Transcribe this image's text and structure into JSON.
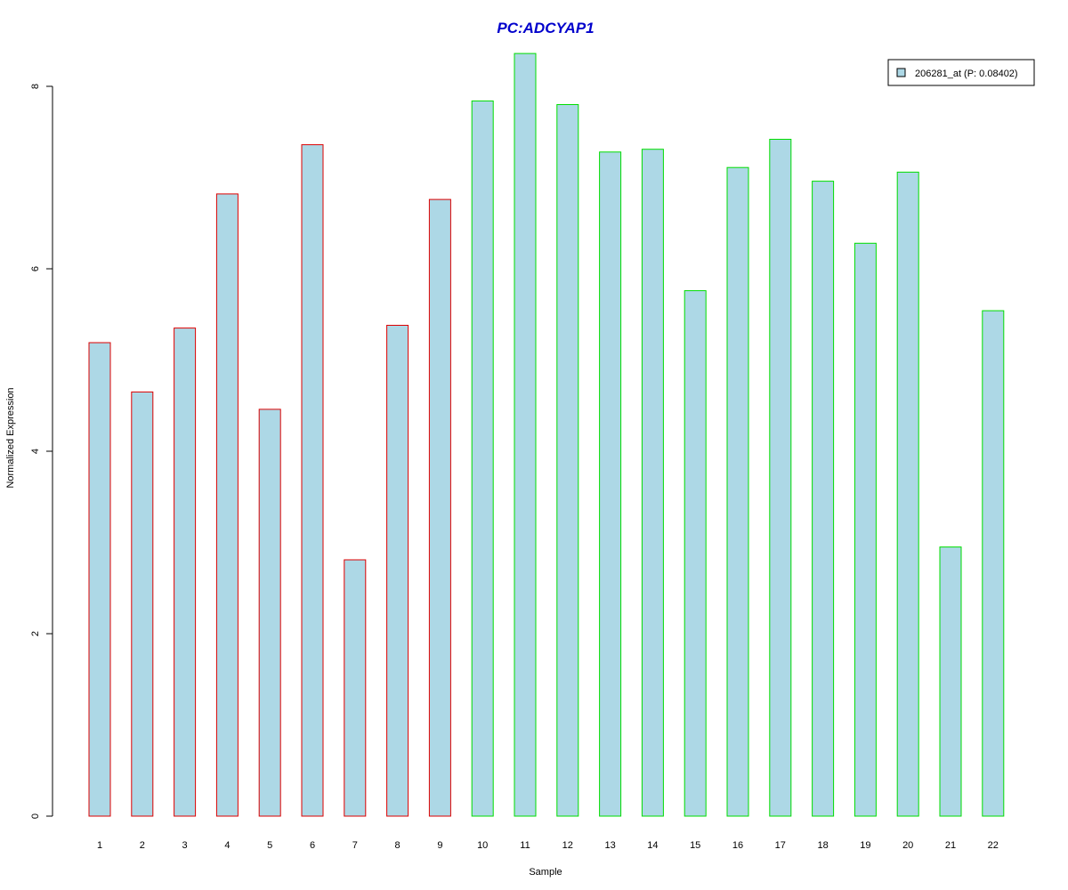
{
  "chart_data": {
    "type": "bar",
    "title": "PC:ADCYAP1",
    "xlabel": "Sample",
    "ylabel": "Normalized Expression",
    "categories": [
      "1",
      "2",
      "3",
      "4",
      "5",
      "6",
      "7",
      "8",
      "9",
      "10",
      "11",
      "12",
      "13",
      "14",
      "15",
      "16",
      "17",
      "18",
      "19",
      "20",
      "21",
      "22"
    ],
    "series": [
      {
        "name": "206281_at (P: 0.08402)",
        "values": [
          5.19,
          4.65,
          5.35,
          6.82,
          4.46,
          7.36,
          2.81,
          5.38,
          6.76,
          7.84,
          8.36,
          7.8,
          7.28,
          7.31,
          5.76,
          7.11,
          7.42,
          6.96,
          6.28,
          7.06,
          2.95,
          5.54
        ]
      }
    ],
    "bar_border_colors": [
      "#dd0000",
      "#dd0000",
      "#dd0000",
      "#dd0000",
      "#dd0000",
      "#dd0000",
      "#dd0000",
      "#dd0000",
      "#dd0000",
      "#00dd00",
      "#00dd00",
      "#00dd00",
      "#00dd00",
      "#00dd00",
      "#00dd00",
      "#00dd00",
      "#00dd00",
      "#00dd00",
      "#00dd00",
      "#00dd00",
      "#00dd00",
      "#00dd00"
    ],
    "bar_fill": "#add8e6",
    "title_color": "#0000cc",
    "yticks": [
      0,
      2,
      4,
      6,
      8
    ],
    "ylim": [
      0,
      8.36
    ],
    "legend_position": "top-right",
    "grid": false
  }
}
